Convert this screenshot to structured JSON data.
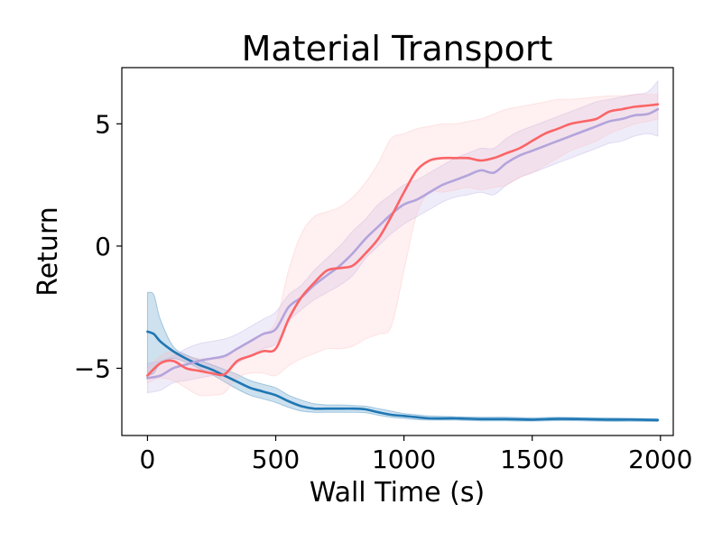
{
  "chart_data": {
    "type": "line",
    "title": "Material Transport",
    "xlabel": "Wall Time (s)",
    "ylabel": "Return",
    "xlim": [
      -100,
      2050
    ],
    "ylim": [
      -7.75,
      7.3
    ],
    "x_ticks": [
      0,
      500,
      1000,
      1500,
      2000
    ],
    "x_tick_labels": [
      "0",
      "500",
      "1000",
      "1500",
      "2000"
    ],
    "y_ticks": [
      -5,
      0,
      5
    ],
    "y_tick_labels": [
      "−5",
      "0",
      "5"
    ],
    "grid": false,
    "legend": "none",
    "series": [
      {
        "color": "#1f77b4",
        "band_color": "#1f77b4",
        "x": [
          0,
          25,
          50,
          100,
          150,
          200,
          250,
          300,
          350,
          400,
          450,
          500,
          550,
          600,
          650,
          700,
          750,
          800,
          850,
          900,
          950,
          1000,
          1050,
          1100,
          1200,
          1300,
          1400,
          1500,
          1600,
          1700,
          1800,
          1900,
          1990
        ],
        "mean": [
          -3.5,
          -3.6,
          -3.9,
          -4.3,
          -4.6,
          -4.85,
          -5.05,
          -5.3,
          -5.55,
          -5.8,
          -5.95,
          -6.1,
          -6.35,
          -6.55,
          -6.65,
          -6.65,
          -6.65,
          -6.65,
          -6.68,
          -6.8,
          -6.9,
          -6.95,
          -7.0,
          -7.05,
          -7.05,
          -7.08,
          -7.08,
          -7.1,
          -7.07,
          -7.08,
          -7.1,
          -7.1,
          -7.12
        ],
        "upper": [
          -1.9,
          -2.0,
          -3.0,
          -4.1,
          -4.45,
          -4.65,
          -4.85,
          -5.05,
          -5.25,
          -5.5,
          -5.65,
          -5.8,
          -6.1,
          -6.3,
          -6.45,
          -6.5,
          -6.5,
          -6.52,
          -6.55,
          -6.65,
          -6.75,
          -6.85,
          -6.9,
          -6.95,
          -6.98,
          -7.0,
          -7.0,
          -7.02,
          -7.0,
          -7.02,
          -7.03,
          -7.05,
          -7.06
        ],
        "lower": [
          -5.3,
          -5.2,
          -4.8,
          -4.6,
          -4.75,
          -5.0,
          -5.25,
          -5.55,
          -5.85,
          -6.1,
          -6.25,
          -6.4,
          -6.6,
          -6.75,
          -6.8,
          -6.8,
          -6.8,
          -6.8,
          -6.82,
          -6.92,
          -7.0,
          -7.05,
          -7.1,
          -7.12,
          -7.12,
          -7.15,
          -7.15,
          -7.16,
          -7.14,
          -7.15,
          -7.17,
          -7.17,
          -7.18
        ]
      },
      {
        "color": "#b3a4dc",
        "band_color": "#b7a8e2",
        "x": [
          0,
          50,
          100,
          150,
          200,
          250,
          300,
          350,
          400,
          450,
          500,
          550,
          600,
          650,
          700,
          750,
          800,
          850,
          900,
          950,
          1000,
          1050,
          1100,
          1150,
          1200,
          1250,
          1300,
          1350,
          1400,
          1450,
          1500,
          1550,
          1600,
          1650,
          1700,
          1750,
          1800,
          1850,
          1900,
          1950,
          1990
        ],
        "mean": [
          -5.4,
          -5.3,
          -5.0,
          -4.85,
          -4.7,
          -4.6,
          -4.5,
          -4.2,
          -3.9,
          -3.6,
          -3.4,
          -2.5,
          -2.1,
          -1.6,
          -1.2,
          -0.8,
          -0.3,
          0.3,
          0.8,
          1.3,
          1.7,
          1.9,
          2.2,
          2.5,
          2.7,
          2.9,
          3.1,
          3.0,
          3.4,
          3.7,
          3.9,
          4.1,
          4.3,
          4.5,
          4.7,
          4.9,
          5.1,
          5.2,
          5.35,
          5.4,
          5.6
        ],
        "upper": [
          -4.8,
          -4.7,
          -4.5,
          -4.2,
          -4.0,
          -3.9,
          -3.8,
          -3.6,
          -3.3,
          -3.0,
          -2.7,
          -2.0,
          -1.6,
          -1.0,
          -0.5,
          0.0,
          0.6,
          1.1,
          1.7,
          2.1,
          2.5,
          2.7,
          3.0,
          3.3,
          3.6,
          3.8,
          4.0,
          4.0,
          4.4,
          4.7,
          4.9,
          5.1,
          5.3,
          5.5,
          5.7,
          5.9,
          6.0,
          6.1,
          6.2,
          6.3,
          6.75
        ],
        "lower": [
          -6.0,
          -5.9,
          -5.6,
          -5.5,
          -5.4,
          -5.3,
          -5.2,
          -4.8,
          -4.5,
          -4.2,
          -4.0,
          -3.1,
          -2.6,
          -2.2,
          -1.9,
          -1.6,
          -1.2,
          -0.5,
          0.0,
          0.5,
          0.9,
          1.2,
          1.5,
          1.8,
          2.0,
          2.1,
          2.2,
          2.1,
          2.5,
          2.8,
          3.0,
          3.2,
          3.4,
          3.6,
          3.8,
          4.0,
          4.2,
          4.3,
          4.5,
          4.6,
          4.5
        ]
      },
      {
        "color": "#fb6467",
        "band_color": "#fdbcbe",
        "x": [
          0,
          50,
          100,
          150,
          200,
          250,
          300,
          350,
          400,
          450,
          500,
          550,
          600,
          650,
          700,
          750,
          800,
          850,
          900,
          950,
          1000,
          1050,
          1100,
          1150,
          1200,
          1250,
          1300,
          1350,
          1400,
          1450,
          1500,
          1550,
          1600,
          1650,
          1700,
          1750,
          1800,
          1850,
          1900,
          1950,
          1990
        ],
        "mean": [
          -5.3,
          -4.8,
          -4.7,
          -5.0,
          -5.1,
          -5.2,
          -5.25,
          -4.7,
          -4.5,
          -4.3,
          -4.2,
          -3.0,
          -2.1,
          -1.5,
          -1.0,
          -0.9,
          -0.8,
          -0.3,
          0.3,
          1.2,
          2.2,
          3.1,
          3.5,
          3.6,
          3.6,
          3.6,
          3.5,
          3.6,
          3.8,
          4.0,
          4.3,
          4.6,
          4.8,
          5.0,
          5.1,
          5.2,
          5.5,
          5.6,
          5.7,
          5.75,
          5.8
        ],
        "upper": [
          -5.0,
          -4.5,
          -4.3,
          -4.5,
          -4.6,
          -4.6,
          -4.6,
          -4.2,
          -3.9,
          -3.6,
          -3.1,
          -1.0,
          0.5,
          1.2,
          1.4,
          1.6,
          2.0,
          2.6,
          3.4,
          4.4,
          4.6,
          4.8,
          4.9,
          5.0,
          5.0,
          5.1,
          5.2,
          5.4,
          5.6,
          5.7,
          5.8,
          5.9,
          6.0,
          6.0,
          6.05,
          6.1,
          6.15,
          6.15,
          6.2,
          6.2,
          6.2
        ],
        "lower": [
          -5.6,
          -5.4,
          -5.5,
          -5.8,
          -6.1,
          -6.1,
          -6.0,
          -5.4,
          -5.2,
          -5.2,
          -5.3,
          -4.9,
          -4.6,
          -4.4,
          -4.2,
          -4.2,
          -4.1,
          -3.8,
          -3.6,
          -3.3,
          -1.0,
          1.3,
          2.2,
          2.2,
          2.3,
          2.4,
          2.3,
          2.4,
          2.5,
          2.8,
          3.0,
          3.3,
          3.6,
          3.9,
          4.1,
          4.3,
          4.6,
          4.8,
          5.0,
          5.1,
          5.2
        ]
      }
    ]
  }
}
